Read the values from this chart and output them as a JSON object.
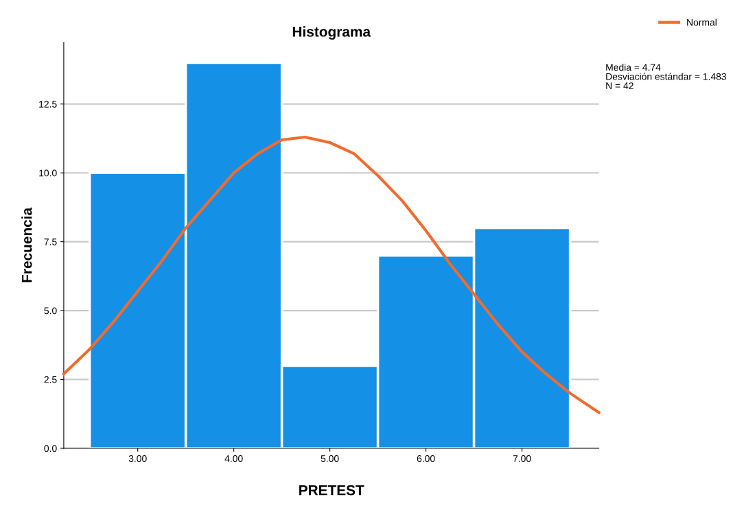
{
  "chart_data": {
    "type": "histogram",
    "title": "Histograma",
    "xlabel": "PRETEST",
    "ylabel": "Frecuencia",
    "bins": [
      2.5,
      3.5,
      4.5,
      5.5,
      6.5,
      7.5
    ],
    "series": [
      {
        "color": "#1490e6",
        "values": [
          10,
          14,
          3,
          7,
          8
        ]
      },
      {
        "type": "line",
        "name": "Normal",
        "color": "#f26b2e",
        "x": [
          2.23,
          2.5,
          2.75,
          3.0,
          3.25,
          3.5,
          3.75,
          4.0,
          4.25,
          4.5,
          4.74,
          5.0,
          5.25,
          5.5,
          5.75,
          6.0,
          6.25,
          6.5,
          6.75,
          7.0,
          7.25,
          7.5,
          7.8
        ],
        "values": [
          2.7,
          3.6,
          4.6,
          5.7,
          6.8,
          8.0,
          9.0,
          10.0,
          10.7,
          11.2,
          11.3,
          11.1,
          10.7,
          9.9,
          9.0,
          7.9,
          6.7,
          5.6,
          4.5,
          3.5,
          2.7,
          2.0,
          1.3
        ]
      }
    ],
    "xlim": [
      2.23,
      7.8
    ],
    "xticks": [
      {
        "value": 3,
        "label": "3.00"
      },
      {
        "value": 4,
        "label": "4.00"
      },
      {
        "value": 5,
        "label": "5.00"
      },
      {
        "value": 6,
        "label": "6.00"
      },
      {
        "value": 7,
        "label": "7.00"
      }
    ],
    "ylim": [
      0,
      14.74
    ],
    "yticks": [
      {
        "value": 0,
        "label": "0.0"
      },
      {
        "value": 2.5,
        "label": "2.5"
      },
      {
        "value": 5,
        "label": "5.0"
      },
      {
        "value": 7.5,
        "label": "7.5"
      },
      {
        "value": 10,
        "label": "10.0"
      },
      {
        "value": 12.5,
        "label": "12.5"
      }
    ],
    "grid": "y",
    "legend": "top right",
    "marker": "none",
    "line_style": "solid",
    "annotations": [
      "Media = 4.74",
      "Desviación estándar = 1.483",
      "N = 42"
    ]
  }
}
